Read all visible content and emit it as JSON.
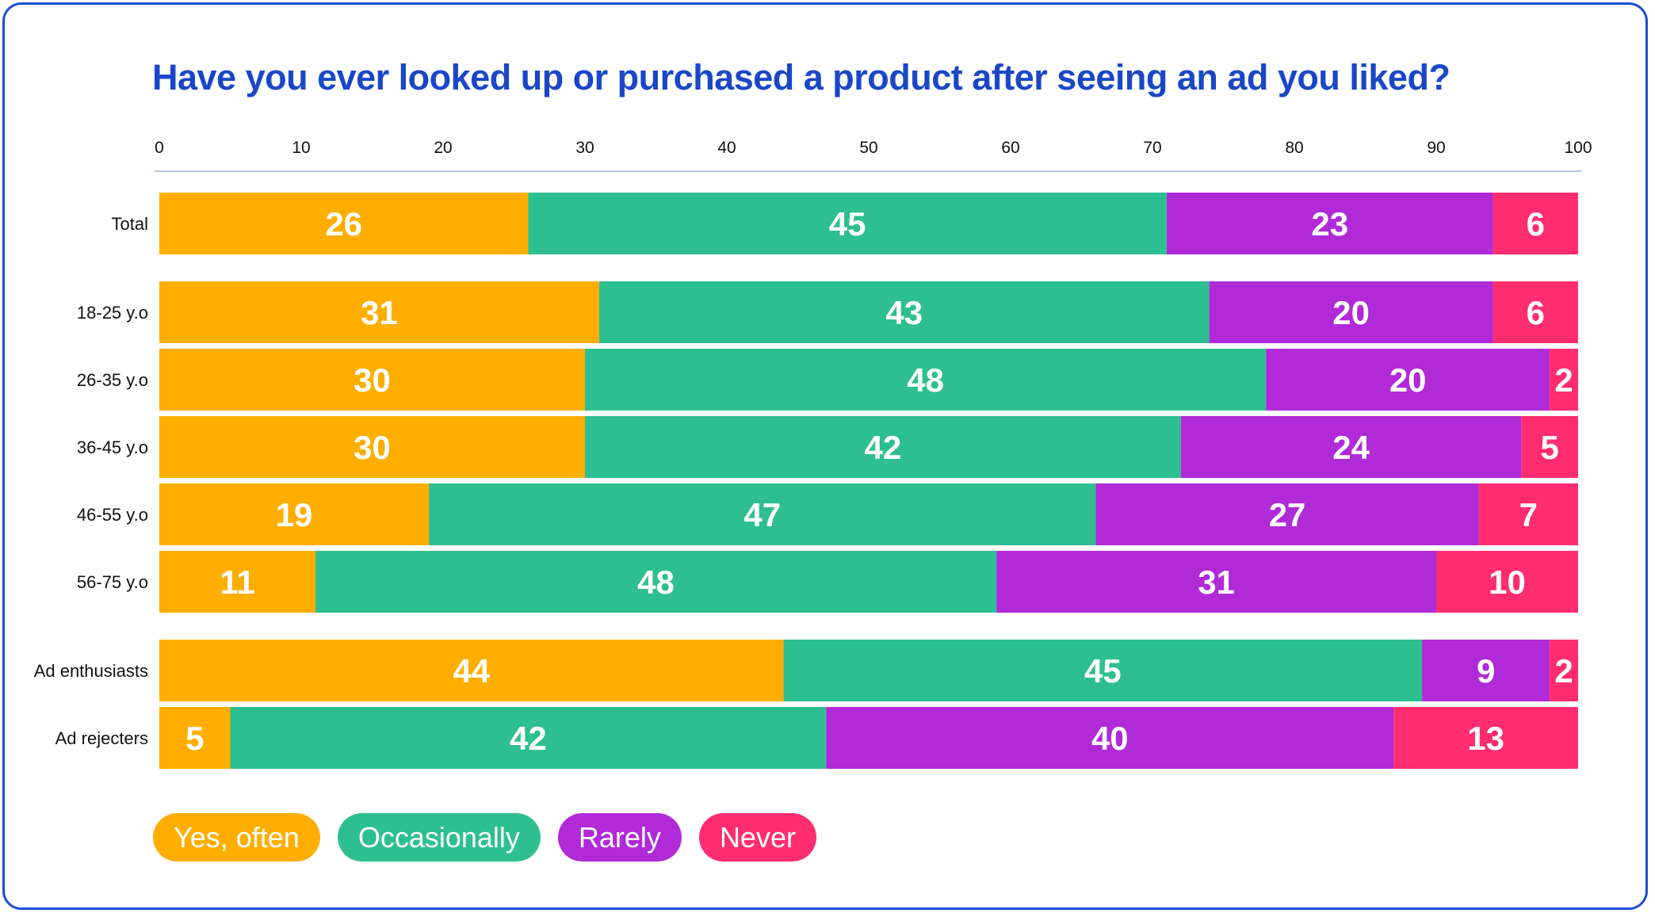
{
  "chart_data": {
    "type": "bar",
    "orientation": "horizontal",
    "stacked": true,
    "title": "Have you ever looked up or purchased a product after seeing an ad you liked?",
    "xlim": [
      0,
      100
    ],
    "x_ticks": [
      "0",
      "10",
      "20",
      "30",
      "40",
      "50",
      "60",
      "70",
      "80",
      "90",
      "100"
    ],
    "categories": [
      "Total",
      "18-25 y.o",
      "26-35 y.o",
      "36-45 y.o",
      "46-55 y.o",
      "56-75 y.o",
      "Ad enthusiasts",
      "Ad rejecters"
    ],
    "groups": [
      [
        "Total"
      ],
      [
        "18-25 y.o",
        "26-35 y.o",
        "36-45 y.o",
        "46-55 y.o",
        "56-75 y.o"
      ],
      [
        "Ad enthusiasts",
        "Ad rejecters"
      ]
    ],
    "series": [
      {
        "name": "Yes, often",
        "color": "#ffae00",
        "values": [
          26,
          31,
          30,
          30,
          19,
          11,
          44,
          5
        ]
      },
      {
        "name": "Occasionally",
        "color": "#2ebf91",
        "values": [
          45,
          43,
          48,
          42,
          47,
          48,
          45,
          42
        ]
      },
      {
        "name": "Rarely",
        "color": "#b02ad8",
        "values": [
          23,
          20,
          20,
          24,
          27,
          31,
          9,
          40
        ]
      },
      {
        "name": "Never",
        "color": "#ff2d6f",
        "values": [
          6,
          6,
          2,
          5,
          7,
          10,
          2,
          13
        ]
      }
    ],
    "legend_position": "bottom-left",
    "grid": false
  },
  "colors": {
    "title": "#1a47c8",
    "frame": "#1f4fd1",
    "axis_line": "#b9c6e4"
  }
}
